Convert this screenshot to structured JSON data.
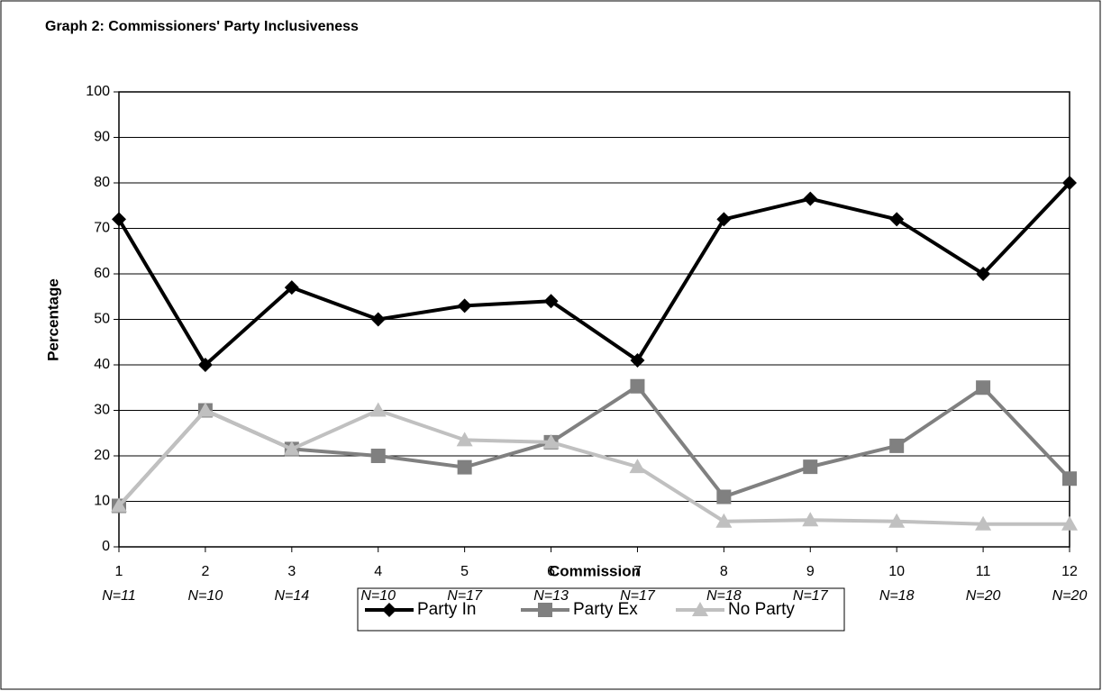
{
  "chart_data": {
    "type": "line",
    "title": "Graph 2: Commissioners' Party Inclusiveness",
    "x_label": "Commission",
    "y_label": "Percentage",
    "categories": [
      "1",
      "2",
      "3",
      "4",
      "5",
      "6",
      "7",
      "8",
      "9",
      "10",
      "11",
      "12"
    ],
    "category_sublabels": [
      "N=11",
      "N=10",
      "N=14",
      "N=10",
      "N=17",
      "N=13",
      "N=17",
      "N=18",
      "N=17",
      "N=18",
      "N=20",
      "N=20"
    ],
    "ylim": [
      0,
      100
    ],
    "yticks": [
      0,
      10,
      20,
      30,
      40,
      50,
      60,
      70,
      80,
      90,
      100
    ],
    "grid": true,
    "legend": "bottom",
    "series": [
      {
        "name": "Party In",
        "color": "#000000",
        "marker": "diamond",
        "values": [
          72,
          40,
          57,
          50,
          53,
          54,
          41,
          72,
          76.5,
          72,
          60,
          80
        ]
      },
      {
        "name": "Party Ex",
        "color": "#808080",
        "marker": "square",
        "values": [
          9,
          30,
          21.5,
          20,
          17.5,
          23,
          35.3,
          11,
          17.6,
          22.2,
          35,
          15
        ]
      },
      {
        "name": "No Party",
        "color": "#c0c0c0",
        "marker": "triangle",
        "values": [
          9,
          30,
          21.5,
          30,
          23.5,
          23,
          17.6,
          5.6,
          5.9,
          5.6,
          5,
          5
        ]
      }
    ]
  }
}
